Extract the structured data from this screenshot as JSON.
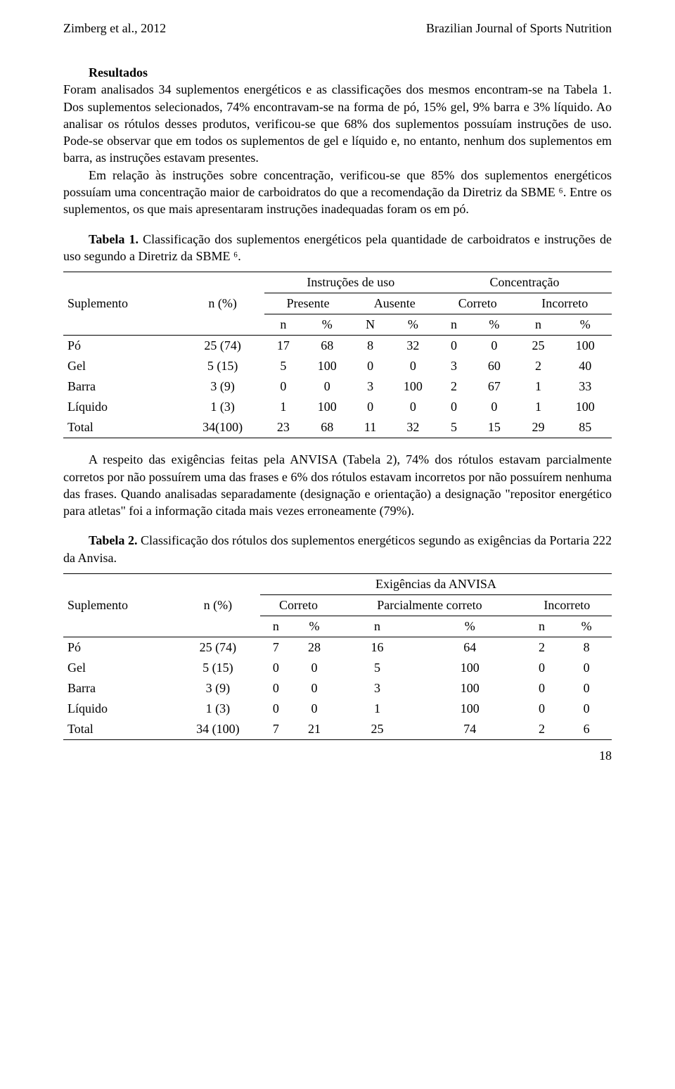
{
  "header": {
    "left": "Zimberg et al., 2012",
    "right": "Brazilian Journal of Sports Nutrition"
  },
  "section_title": "Resultados",
  "paragraphs": {
    "p1": "Foram analisados 34 suplementos energéticos e as classificações dos mesmos encontram-se na Tabela 1. Dos suplementos selecionados, 74% encontravam-se na forma de pó, 15% gel, 9% barra e 3% líquido. Ao analisar os rótulos desses produtos, verificou-se que 68% dos suplementos possuíam instruções de uso. Pode-se observar que em todos os suplementos de gel e líquido e, no entanto, nenhum dos suplementos em barra, as instruções estavam presentes.",
    "p2": "Em relação às instruções sobre concentração, verificou-se que 85% dos suplementos energéticos possuíam uma concentração maior de carboidratos do que a recomendação da Diretriz da SBME ⁶. Entre os suplementos, os que mais apresentaram instruções inadequadas foram os em pó.",
    "t1_caption_bold": "Tabela 1.",
    "t1_caption_rest": " Classificação dos suplementos energéticos pela quantidade de carboidratos e instruções de uso segundo a Diretriz da SBME ⁶.",
    "p3": "A respeito das exigências feitas pela ANVISA (Tabela 2), 74% dos rótulos estavam parcialmente corretos por não possuírem uma das frases e 6% dos rótulos estavam incorretos por não possuírem nenhuma das frases. Quando analisadas separadamente (designação e orientação) a designação \"repositor energético para atletas\" foi a informação citada mais vezes erroneamente (79%).",
    "t2_caption_bold": "Tabela 2.",
    "t2_caption_rest": " Classificação dos rótulos dos suplementos energéticos segundo as exigências da Portaria 222 da Anvisa."
  },
  "table1": {
    "group1": "Instruções de uso",
    "group2": "Concentração",
    "col_sup": "Suplemento",
    "col_npct": "n (%)",
    "sub_presente": "Presente",
    "sub_ausente": "Ausente",
    "sub_correto": "Correto",
    "sub_incorreto": "Incorreto",
    "h_n": "n",
    "h_pct": "%",
    "h_N": "N",
    "rows": [
      {
        "label": "Pó",
        "npct": "25 (74)",
        "c": [
          "17",
          "68",
          "8",
          "32",
          "0",
          "0",
          "25",
          "100"
        ]
      },
      {
        "label": "Gel",
        "npct": "5 (15)",
        "c": [
          "5",
          "100",
          "0",
          "0",
          "3",
          "60",
          "2",
          "40"
        ]
      },
      {
        "label": "Barra",
        "npct": "3 (9)",
        "c": [
          "0",
          "0",
          "3",
          "100",
          "2",
          "67",
          "1",
          "33"
        ]
      },
      {
        "label": "Líquido",
        "npct": "1 (3)",
        "c": [
          "1",
          "100",
          "0",
          "0",
          "0",
          "0",
          "1",
          "100"
        ]
      },
      {
        "label": "Total",
        "npct": "34(100)",
        "c": [
          "23",
          "68",
          "11",
          "32",
          "5",
          "15",
          "29",
          "85"
        ]
      }
    ]
  },
  "table2": {
    "group": "Exigências da ANVISA",
    "col_sup": "Suplemento",
    "col_npct": "n (%)",
    "sub_correto": "Correto",
    "sub_parcial": "Parcialmente correto",
    "sub_incorreto": "Incorreto",
    "h_n": "n",
    "h_pct": "%",
    "rows": [
      {
        "label": "Pó",
        "npct": "25 (74)",
        "c": [
          "7",
          "28",
          "16",
          "64",
          "2",
          "8"
        ]
      },
      {
        "label": "Gel",
        "npct": "5 (15)",
        "c": [
          "0",
          "0",
          "5",
          "100",
          "0",
          "0"
        ]
      },
      {
        "label": "Barra",
        "npct": "3 (9)",
        "c": [
          "0",
          "0",
          "3",
          "100",
          "0",
          "0"
        ]
      },
      {
        "label": "Líquido",
        "npct": "1 (3)",
        "c": [
          "0",
          "0",
          "1",
          "100",
          "0",
          "0"
        ]
      },
      {
        "label": "Total",
        "npct": "34 (100)",
        "c": [
          "7",
          "21",
          "25",
          "74",
          "2",
          "6"
        ]
      }
    ]
  },
  "page_number": "18"
}
